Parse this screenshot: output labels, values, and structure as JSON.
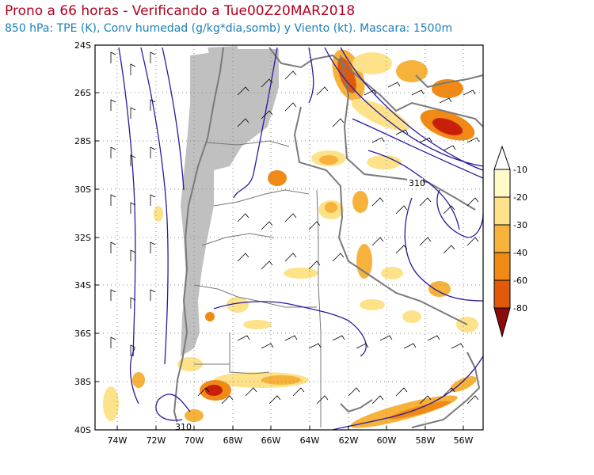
{
  "title": "Prono a 66 horas - Verificando a Tue00Z20MAR2018",
  "subtitle": "850 hPa: TPE (K), Conv humedad (g/kg*dia,somb) y Viento (kt). Mascara: 1500m",
  "axes": {
    "lat_labels": [
      "24S",
      "26S",
      "28S",
      "30S",
      "32S",
      "34S",
      "36S",
      "38S",
      "40S"
    ],
    "lon_labels": [
      "74W",
      "72W",
      "70W",
      "68W",
      "66W",
      "64W",
      "62W",
      "60W",
      "58W",
      "56W"
    ]
  },
  "contour_labels": [
    "310",
    "310"
  ],
  "colorbar": {
    "labels": [
      "-10",
      "-20",
      "-30",
      "-40",
      "-60",
      "-80"
    ],
    "colors": [
      "#fffac8",
      "#fde28a",
      "#f7b23c",
      "#f08a14",
      "#e05a0a",
      "#c81e0a",
      "#8c0a0a"
    ]
  },
  "colors": {
    "map_mask": "#c0c0c0",
    "contour": "#2a1aa0",
    "borders": "#7a7a7a",
    "grid": "#888888"
  }
}
